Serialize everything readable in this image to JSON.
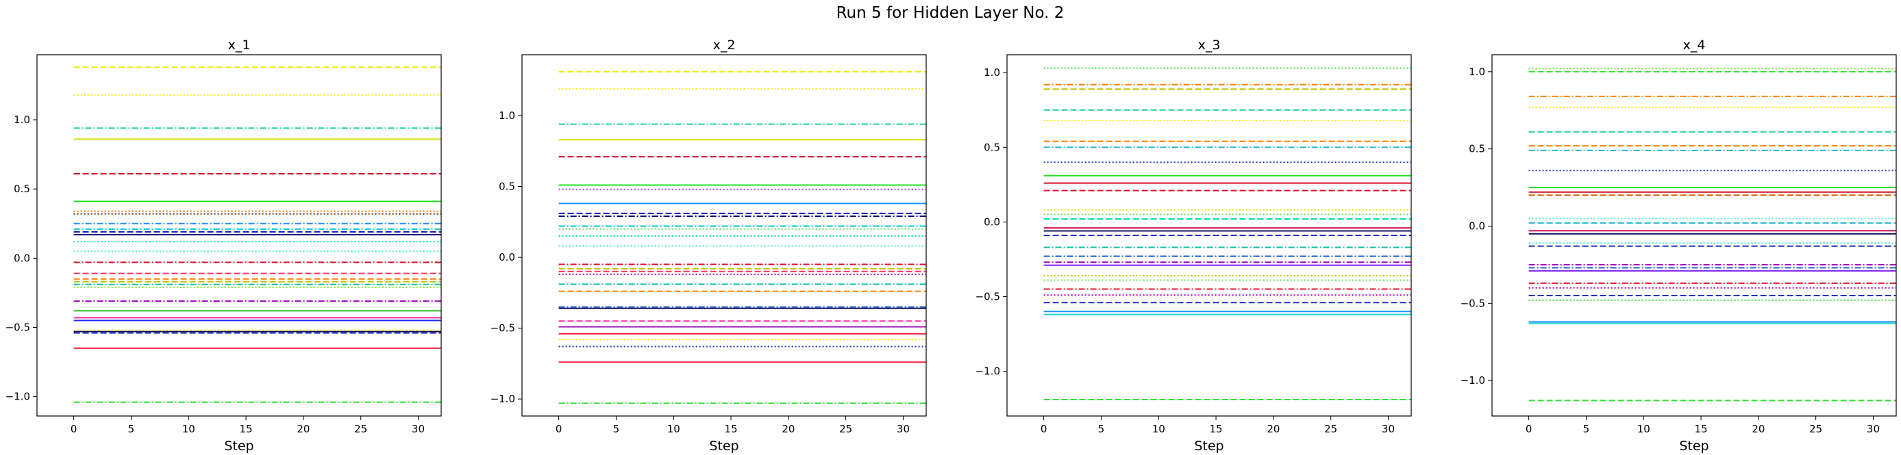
{
  "figure": {
    "title": "Run 5 for Hidden Layer No. 2"
  },
  "chart_data": [
    {
      "type": "line",
      "title": "x_1",
      "xlabel": "Step",
      "ylabel": "",
      "x_range": [
        0,
        32
      ],
      "xlim": [
        -3.2,
        32
      ],
      "ylim": [
        -1.14,
        1.47
      ],
      "xticks": [
        0,
        5,
        10,
        15,
        20,
        25,
        30
      ],
      "yticks": [
        -1.0,
        -0.5,
        0.0,
        0.5,
        1.0
      ],
      "ytick_labels": [
        "−1.0",
        "−0.5",
        "0.0",
        "0.5",
        "1.0"
      ],
      "grid": false,
      "series": [
        {
          "value": 1.38,
          "color": "#e8f000",
          "style": "dashed"
        },
        {
          "value": 1.18,
          "color": "#f0f000",
          "style": "dotted"
        },
        {
          "value": 0.94,
          "color": "#22d3a0",
          "style": "dashdot"
        },
        {
          "value": 0.86,
          "color": "#d4e000",
          "style": "solid"
        },
        {
          "value": 0.61,
          "color": "#d0102a",
          "style": "dashed"
        },
        {
          "value": 0.41,
          "color": "#20e020",
          "style": "solid"
        },
        {
          "value": 0.34,
          "color": "#e87800",
          "style": "dotted"
        },
        {
          "value": 0.32,
          "color": "#602000",
          "style": "dotted"
        },
        {
          "value": 0.25,
          "color": "#1e90ff",
          "style": "dashdot"
        },
        {
          "value": 0.21,
          "color": "#00c8c8",
          "style": "dashdot"
        },
        {
          "value": 0.19,
          "color": "#1010c0",
          "style": "dashed"
        },
        {
          "value": 0.17,
          "color": "#000080",
          "style": "solid"
        },
        {
          "value": 0.12,
          "color": "#00e0a0",
          "style": "dotted"
        },
        {
          "value": 0.05,
          "color": "#40f0c0",
          "style": "dotted"
        },
        {
          "value": -0.03,
          "color": "#e01030",
          "style": "dashdot"
        },
        {
          "value": -0.11,
          "color": "#ff3060",
          "style": "dashed"
        },
        {
          "value": -0.15,
          "color": "#ff8000",
          "style": "dashed"
        },
        {
          "value": -0.17,
          "color": "#c0c000",
          "style": "dashed"
        },
        {
          "value": -0.19,
          "color": "#10c0a0",
          "style": "dashdot"
        },
        {
          "value": -0.21,
          "color": "#70f020",
          "style": "dotted"
        },
        {
          "value": -0.31,
          "color": "#a000c0",
          "style": "dashdot"
        },
        {
          "value": -0.38,
          "color": "#20c020",
          "style": "solid"
        },
        {
          "value": -0.43,
          "color": "#ff30a0",
          "style": "solid"
        },
        {
          "value": -0.45,
          "color": "#2020ff",
          "style": "solid"
        },
        {
          "value": -0.52,
          "color": "#f0f000",
          "style": "dotted"
        },
        {
          "value": -0.53,
          "color": "#101060",
          "style": "solid"
        },
        {
          "value": -0.54,
          "color": "#2030c0",
          "style": "dashed"
        },
        {
          "value": -0.65,
          "color": "#ff2040",
          "style": "solid"
        },
        {
          "value": -1.04,
          "color": "#30e030",
          "style": "dashdot"
        }
      ]
    },
    {
      "type": "line",
      "title": "x_2",
      "xlabel": "Step",
      "ylabel": "",
      "x_range": [
        0,
        32
      ],
      "xlim": [
        -3.2,
        32
      ],
      "ylim": [
        -1.12,
        1.43
      ],
      "xticks": [
        0,
        5,
        10,
        15,
        20,
        25,
        30
      ],
      "yticks": [
        -1.0,
        -0.5,
        0.0,
        0.5,
        1.0
      ],
      "ytick_labels": [
        "−1.0",
        "−0.5",
        "0.0",
        "0.5",
        "1.0"
      ],
      "grid": false,
      "series": [
        {
          "value": 1.31,
          "color": "#e8f000",
          "style": "dashed"
        },
        {
          "value": 1.19,
          "color": "#f0f000",
          "style": "dotted"
        },
        {
          "value": 0.94,
          "color": "#22d3a0",
          "style": "dashdot"
        },
        {
          "value": 0.83,
          "color": "#d4e000",
          "style": "solid"
        },
        {
          "value": 0.71,
          "color": "#d0102a",
          "style": "dashed"
        },
        {
          "value": 0.51,
          "color": "#20e020",
          "style": "solid"
        },
        {
          "value": 0.48,
          "color": "#9040ff",
          "style": "dotted"
        },
        {
          "value": 0.38,
          "color": "#1e90ff",
          "style": "solid"
        },
        {
          "value": 0.31,
          "color": "#1010c0",
          "style": "dashed"
        },
        {
          "value": 0.29,
          "color": "#000080",
          "style": "dashdot"
        },
        {
          "value": 0.22,
          "color": "#00c8c8",
          "style": "dashdot"
        },
        {
          "value": 0.2,
          "color": "#60e060",
          "style": "dotted"
        },
        {
          "value": 0.15,
          "color": "#00e0a0",
          "style": "dotted"
        },
        {
          "value": 0.08,
          "color": "#40f0c0",
          "style": "dotted"
        },
        {
          "value": -0.05,
          "color": "#e01030",
          "style": "dashdot"
        },
        {
          "value": -0.08,
          "color": "#c0c000",
          "style": "dashed"
        },
        {
          "value": -0.1,
          "color": "#ff3060",
          "style": "dashed"
        },
        {
          "value": -0.12,
          "color": "#a000c0",
          "style": "dotted"
        },
        {
          "value": -0.19,
          "color": "#10c0a0",
          "style": "dashdot"
        },
        {
          "value": -0.24,
          "color": "#ff8000",
          "style": "dashed"
        },
        {
          "value": -0.35,
          "color": "#2060c0",
          "style": "dashdot"
        },
        {
          "value": -0.36,
          "color": "#101060",
          "style": "solid"
        },
        {
          "value": -0.45,
          "color": "#ff30a0",
          "style": "dashed"
        },
        {
          "value": -0.49,
          "color": "#a020c0",
          "style": "solid"
        },
        {
          "value": -0.54,
          "color": "#ff2040",
          "style": "solid"
        },
        {
          "value": -0.58,
          "color": "#f0f000",
          "style": "dotted"
        },
        {
          "value": -0.63,
          "color": "#2030c0",
          "style": "dotted"
        },
        {
          "value": -0.74,
          "color": "#ff2040",
          "style": "solid"
        },
        {
          "value": -1.03,
          "color": "#30e030",
          "style": "dashdot"
        }
      ]
    },
    {
      "type": "line",
      "title": "x_3",
      "xlabel": "Step",
      "ylabel": "",
      "x_range": [
        0,
        32
      ],
      "xlim": [
        -3.2,
        32
      ],
      "ylim": [
        -1.3,
        1.12
      ],
      "xticks": [
        0,
        5,
        10,
        15,
        20,
        25,
        30
      ],
      "yticks": [
        -1.0,
        -0.5,
        0.0,
        0.5,
        1.0
      ],
      "ytick_labels": [
        "−1.0",
        "−0.5",
        "0.0",
        "0.5",
        "1.0"
      ],
      "grid": false,
      "series": [
        {
          "value": 1.03,
          "color": "#30e030",
          "style": "dotted"
        },
        {
          "value": 0.92,
          "color": "#ff8000",
          "style": "dashdot"
        },
        {
          "value": 0.89,
          "color": "#c0c000",
          "style": "dashed"
        },
        {
          "value": 0.75,
          "color": "#20d090",
          "style": "dashed"
        },
        {
          "value": 0.68,
          "color": "#f0f000",
          "style": "dotted"
        },
        {
          "value": 0.54,
          "color": "#ff8000",
          "style": "dashed"
        },
        {
          "value": 0.5,
          "color": "#22b8d0",
          "style": "dashdot"
        },
        {
          "value": 0.4,
          "color": "#2030c0",
          "style": "dotted"
        },
        {
          "value": 0.31,
          "color": "#20e020",
          "style": "solid"
        },
        {
          "value": 0.26,
          "color": "#d0102a",
          "style": "solid"
        },
        {
          "value": 0.21,
          "color": "#e01030",
          "style": "dashed"
        },
        {
          "value": 0.08,
          "color": "#e8f000",
          "style": "dotted"
        },
        {
          "value": 0.05,
          "color": "#60e060",
          "style": "dotted"
        },
        {
          "value": 0.02,
          "color": "#00e0a0",
          "style": "dashed"
        },
        {
          "value": -0.04,
          "color": "#d01050",
          "style": "solid"
        },
        {
          "value": -0.06,
          "color": "#101060",
          "style": "solid"
        },
        {
          "value": -0.09,
          "color": "#2030c0",
          "style": "dashed"
        },
        {
          "value": -0.17,
          "color": "#10c0a0",
          "style": "dashdot"
        },
        {
          "value": -0.23,
          "color": "#2060c0",
          "style": "dashdot"
        },
        {
          "value": -0.27,
          "color": "#a000c0",
          "style": "dashdot"
        },
        {
          "value": -0.29,
          "color": "#8020ff",
          "style": "solid"
        },
        {
          "value": -0.36,
          "color": "#c0c000",
          "style": "dotted"
        },
        {
          "value": -0.39,
          "color": "#60e060",
          "style": "dotted"
        },
        {
          "value": -0.45,
          "color": "#e01030",
          "style": "dashdot"
        },
        {
          "value": -0.49,
          "color": "#a000c0",
          "style": "dotted"
        },
        {
          "value": -0.54,
          "color": "#2030c0",
          "style": "dashed"
        },
        {
          "value": -0.6,
          "color": "#1e90ff",
          "style": "solid"
        },
        {
          "value": -0.62,
          "color": "#22d3d3",
          "style": "solid"
        },
        {
          "value": -1.19,
          "color": "#30e030",
          "style": "dashed"
        }
      ]
    },
    {
      "type": "line",
      "title": "x_4",
      "xlabel": "Step",
      "ylabel": "",
      "x_range": [
        0,
        32
      ],
      "xlim": [
        -3.2,
        32
      ],
      "ylim": [
        -1.23,
        1.11
      ],
      "xticks": [
        0,
        5,
        10,
        15,
        20,
        25,
        30
      ],
      "yticks": [
        -1.0,
        -0.5,
        0.0,
        0.5,
        1.0
      ],
      "ytick_labels": [
        "−1.0",
        "−0.5",
        "0.0",
        "0.5",
        "1.0"
      ],
      "grid": false,
      "series": [
        {
          "value": 1.02,
          "color": "#60e020",
          "style": "dotted"
        },
        {
          "value": 1.0,
          "color": "#30e030",
          "style": "dashed"
        },
        {
          "value": 0.84,
          "color": "#ff8000",
          "style": "dashdot"
        },
        {
          "value": 0.77,
          "color": "#f0f000",
          "style": "dotted"
        },
        {
          "value": 0.61,
          "color": "#20d090",
          "style": "dashed"
        },
        {
          "value": 0.52,
          "color": "#ff8000",
          "style": "dashed"
        },
        {
          "value": 0.49,
          "color": "#22b8d0",
          "style": "dashdot"
        },
        {
          "value": 0.36,
          "color": "#2030c0",
          "style": "dotted"
        },
        {
          "value": 0.25,
          "color": "#20e020",
          "style": "solid"
        },
        {
          "value": 0.22,
          "color": "#d0102a",
          "style": "solid"
        },
        {
          "value": 0.2,
          "color": "#e06000",
          "style": "dashed"
        },
        {
          "value": 0.05,
          "color": "#40f0c0",
          "style": "dotted"
        },
        {
          "value": 0.02,
          "color": "#22b8d0",
          "style": "dashed"
        },
        {
          "value": -0.03,
          "color": "#d01050",
          "style": "solid"
        },
        {
          "value": -0.05,
          "color": "#101060",
          "style": "solid"
        },
        {
          "value": -0.11,
          "color": "#40f0c0",
          "style": "dotted"
        },
        {
          "value": -0.13,
          "color": "#2030c0",
          "style": "dashed"
        },
        {
          "value": -0.25,
          "color": "#a000c0",
          "style": "dashdot"
        },
        {
          "value": -0.27,
          "color": "#2060c0",
          "style": "dashdot"
        },
        {
          "value": -0.29,
          "color": "#8020ff",
          "style": "solid"
        },
        {
          "value": -0.37,
          "color": "#e01030",
          "style": "dashdot"
        },
        {
          "value": -0.4,
          "color": "#a000c0",
          "style": "dotted"
        },
        {
          "value": -0.45,
          "color": "#2030c0",
          "style": "dashed"
        },
        {
          "value": -0.48,
          "color": "#30e030",
          "style": "dotted"
        },
        {
          "value": -0.62,
          "color": "#1e90ff",
          "style": "solid"
        },
        {
          "value": -0.63,
          "color": "#22d3d3",
          "style": "solid"
        },
        {
          "value": -1.13,
          "color": "#30e030",
          "style": "dashed"
        }
      ]
    }
  ]
}
